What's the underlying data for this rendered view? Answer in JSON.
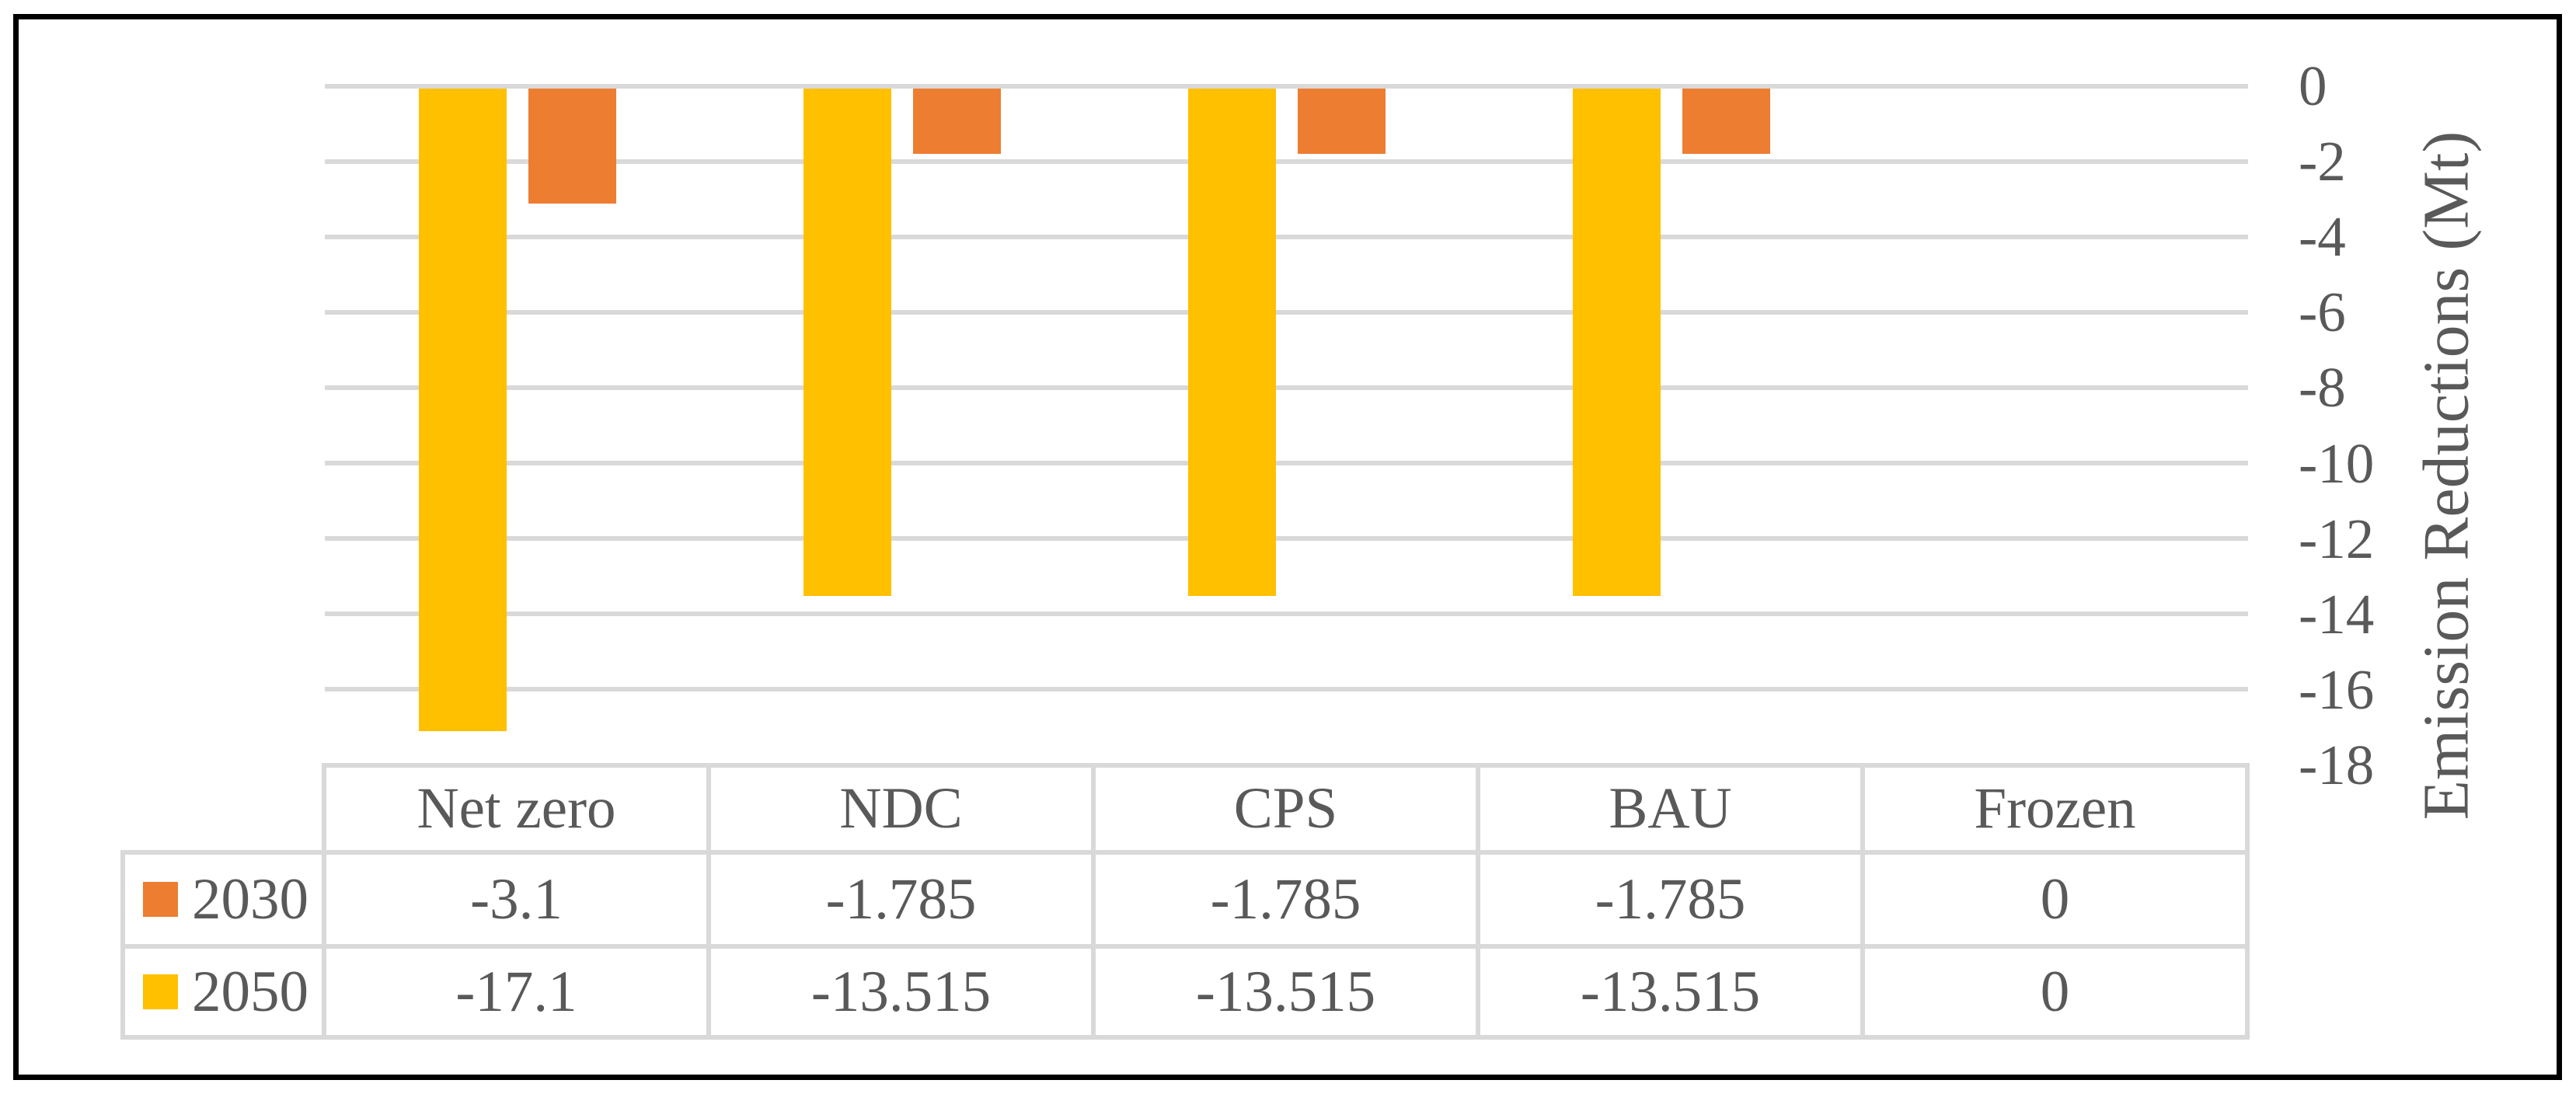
{
  "chart_data": {
    "type": "bar",
    "title": "",
    "xlabel": "",
    "ylabel": "Emission Reductions (Mt)",
    "categories": [
      "Net zero",
      "NDC",
      "CPS",
      "BAU",
      "Frozen"
    ],
    "series": [
      {
        "name": "2030",
        "color": "#ED7D31",
        "values": [
          -3.1,
          -1.785,
          -1.785,
          -1.785,
          0
        ]
      },
      {
        "name": "2050",
        "color": "#FFC000",
        "values": [
          -17.1,
          -13.515,
          -13.515,
          -13.515,
          0
        ]
      }
    ],
    "ylim": [
      -18,
      0
    ],
    "yticks": [
      0,
      -2,
      -4,
      -6,
      -8,
      -10,
      -12,
      -14,
      -16,
      -18
    ],
    "grid": true,
    "gridline_color": "#D9D9D9",
    "legend_position": "data-table-left",
    "bar_order_in_group_left_to_right": [
      "2050",
      "2030"
    ]
  },
  "axis": {
    "tick_labels": [
      "0",
      "-2",
      "-4",
      "-6",
      "-8",
      "-10",
      "-12",
      "-14",
      "-16",
      "-18"
    ],
    "title": "Emission Reductions (Mt)"
  },
  "data_table": {
    "columns": [
      "Net zero",
      "NDC",
      "CPS",
      "BAU",
      "Frozen"
    ],
    "rows": [
      {
        "label": "2030",
        "swatch_color": "#ED7D31",
        "values": [
          "-3.1",
          "-1.785",
          "-1.785",
          "-1.785",
          "0"
        ]
      },
      {
        "label": "2050",
        "swatch_color": "#FFC000",
        "values": [
          "-17.1",
          "-13.515",
          "-13.515",
          "-13.515",
          "0"
        ]
      }
    ]
  },
  "colors": {
    "series_2030": "#ED7D31",
    "series_2050": "#FFC000",
    "gridline": "#D9D9D9",
    "text": "#595959",
    "table_border": "#D9D9D9",
    "frame_border": "#000000",
    "background": "#ffffff"
  }
}
